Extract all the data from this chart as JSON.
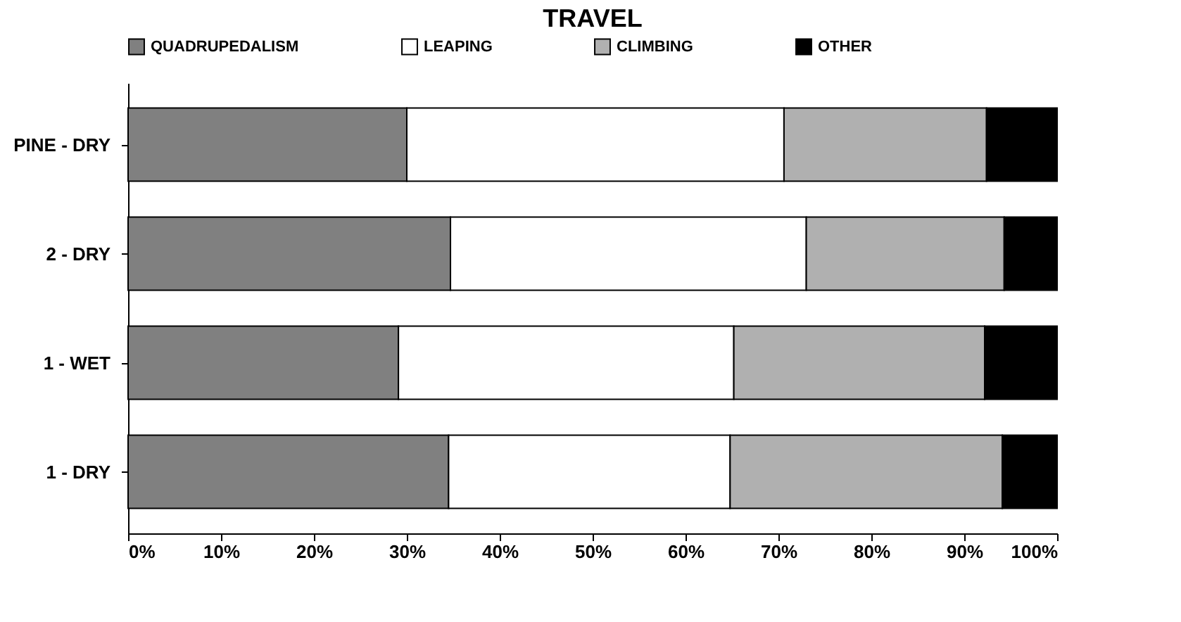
{
  "chart_data": {
    "type": "bar",
    "title": "TRAVEL",
    "orientation": "horizontal",
    "stacked": true,
    "categories": [
      "PINE  - DRY",
      "2  - DRY",
      "1 - WET",
      "1 - DRY"
    ],
    "series": [
      {
        "name": "QUADRUPEDALISM",
        "color": "#808080",
        "values": [
          30,
          34.7,
          29.1,
          34.5
        ]
      },
      {
        "name": "LEAPING",
        "color": "#ffffff",
        "values": [
          40.6,
          38.3,
          36.1,
          30.3
        ]
      },
      {
        "name": "CLIMBING",
        "color": "#b0b0b0",
        "values": [
          21.8,
          21.3,
          27.0,
          29.3
        ]
      },
      {
        "name": "OTHER",
        "color": "#000000",
        "values": [
          7.6,
          5.7,
          7.8,
          5.9
        ]
      }
    ],
    "xlim": [
      0,
      100
    ],
    "xticks": [
      {
        "value": 0,
        "label": "0%"
      },
      {
        "value": 10,
        "label": "10%"
      },
      {
        "value": 20,
        "label": "20%"
      },
      {
        "value": 30,
        "label": "30%"
      },
      {
        "value": 40,
        "label": "40%"
      },
      {
        "value": 50,
        "label": "50%"
      },
      {
        "value": 60,
        "label": "60%"
      },
      {
        "value": 70,
        "label": "70%"
      },
      {
        "value": 80,
        "label": "80%"
      },
      {
        "value": 90,
        "label": "90%"
      },
      {
        "value": 100,
        "label": "100%"
      }
    ],
    "legend": "top",
    "grid": false
  }
}
